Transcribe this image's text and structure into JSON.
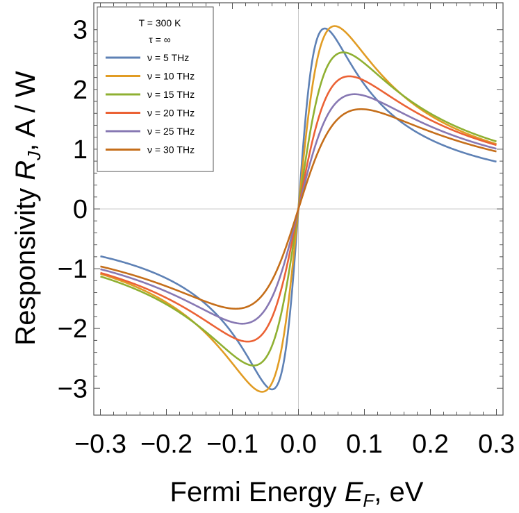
{
  "chart_data": {
    "type": "line",
    "xlabel": "Fermi Energy",
    "xlabel_sym": "E",
    "xlabel_sub": "F",
    "xlabel_unit": ", eV",
    "ylabel": "Responsivity",
    "ylabel_sym": "R",
    "ylabel_sub": "J",
    "ylabel_unit": ", A / W",
    "xlim": [
      -0.31,
      0.31
    ],
    "ylim": [
      -3.45,
      3.45
    ],
    "xticks": [
      "-0.3",
      "-0.2",
      "-0.1",
      "0.0",
      "0.1",
      "0.2",
      "0.3"
    ],
    "xtick_values": [
      -0.3,
      -0.2,
      -0.1,
      0.0,
      0.1,
      0.2,
      0.3
    ],
    "yticks": [
      "-3",
      "-2",
      "-1",
      "0",
      "1",
      "2",
      "3"
    ],
    "ytick_values": [
      -3,
      -2,
      -1,
      0,
      1,
      2,
      3
    ],
    "legend_title1": "T = 300 K",
    "legend_title2": "τ = ∞",
    "legend_position": "top-left",
    "series": [
      {
        "name": "ν = 5 THz",
        "color": "#5E81B5",
        "peak_x": 0.04,
        "peak_y": 3.02,
        "sharpness": 1.5
      },
      {
        "name": "ν = 10 THz",
        "color": "#E19C24",
        "peak_x": 0.055,
        "peak_y": 3.06,
        "sharpness": 1.6
      },
      {
        "name": "ν = 15 THz",
        "color": "#8FB032",
        "peak_x": 0.068,
        "peak_y": 2.62,
        "sharpness": 1.7
      },
      {
        "name": "ν = 20 THz",
        "color": "#EB6235",
        "peak_x": 0.077,
        "peak_y": 2.22,
        "sharpness": 1.8
      },
      {
        "name": "ν = 25 THz",
        "color": "#8778B3",
        "peak_x": 0.085,
        "peak_y": 1.92,
        "sharpness": 1.9
      },
      {
        "name": "ν = 30 THz",
        "color": "#C56E1A",
        "peak_x": 0.095,
        "peak_y": 1.67,
        "sharpness": 2.0
      }
    ]
  }
}
